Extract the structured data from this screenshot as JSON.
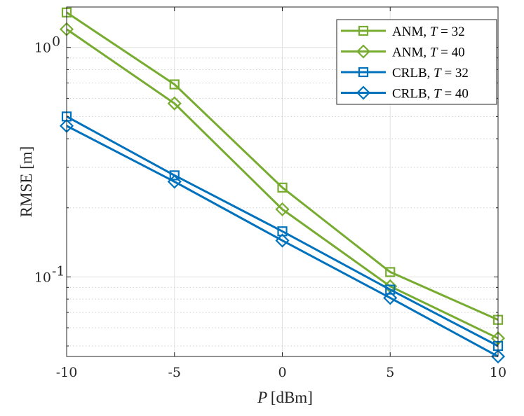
{
  "chart_data": {
    "type": "line",
    "title": "",
    "xlabel": {
      "var": "P",
      "unit": "[dBm]"
    },
    "ylabel": "RMSE [m]",
    "x": [
      -10,
      -5,
      0,
      5,
      10
    ],
    "xlim": [
      -10,
      10
    ],
    "ylim": [
      0.045,
      1.5
    ],
    "yscale": "log",
    "grid": true,
    "x_tick_labels": [
      "-10",
      "-5",
      "0",
      "5",
      "10"
    ],
    "y_tick_labels": [
      {
        "base": "10",
        "exp": "0",
        "value": 1
      },
      {
        "base": "10",
        "exp": "-1",
        "value": 0.1
      }
    ],
    "legend_position": "top-right",
    "series": [
      {
        "name": "ANM, T = 32",
        "label": "ANM, ",
        "var": "T",
        "rel": " = 32",
        "color": "#77AC30",
        "marker": "square",
        "values": [
          1.42,
          0.69,
          0.245,
          0.105,
          0.065
        ]
      },
      {
        "name": "ANM, T = 40",
        "label": "ANM, ",
        "var": "T",
        "rel": " = 40",
        "color": "#77AC30",
        "marker": "diamond",
        "values": [
          1.2,
          0.57,
          0.197,
          0.091,
          0.054
        ]
      },
      {
        "name": "CRLB, T = 32",
        "label": "CRLB, ",
        "var": "T",
        "rel": " = 32",
        "color": "#0072BD",
        "marker": "square",
        "values": [
          0.5,
          0.277,
          0.158,
          0.088,
          0.05
        ]
      },
      {
        "name": "CRLB, T = 40",
        "label": "CRLB, ",
        "var": "T",
        "rel": " = 40",
        "color": "#0072BD",
        "marker": "diamond",
        "values": [
          0.455,
          0.26,
          0.144,
          0.081,
          0.045
        ]
      }
    ]
  }
}
